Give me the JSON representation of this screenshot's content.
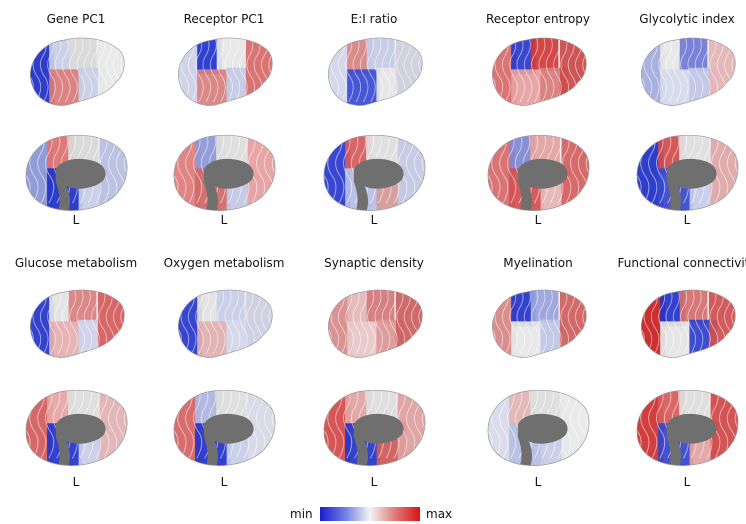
{
  "panels": [
    {
      "title": "Gene PC1",
      "hemisphere": "L",
      "lateral_colors": [
        "#1f2fc9",
        "#c9cfe6",
        "#d9d9d9",
        "#d97b7b",
        "#c9cfe6",
        "#e9e9e9"
      ],
      "medial_colors": [
        "#8a96d6",
        "#e07070",
        "#d9d9d9",
        "#2030c8",
        "#c8cfe8",
        "#b8c0e2"
      ]
    },
    {
      "title": "Receptor PC1",
      "hemisphere": "L",
      "lateral_colors": [
        "#cfd3e8",
        "#2233d0",
        "#e8e8e8",
        "#d98080",
        "#c5cbe6",
        "#d96a6a"
      ],
      "medial_colors": [
        "#e07c7c",
        "#8d98d8",
        "#dedede",
        "#d06868",
        "#c3c9e6",
        "#e8a0a0"
      ]
    },
    {
      "title": "E:I ratio",
      "hemisphere": "L",
      "lateral_colors": [
        "#d3d7ea",
        "#d98484",
        "#c6cce8",
        "#3b4bd4",
        "#e7e7e7",
        "#cfcfe0"
      ],
      "medial_colors": [
        "#2a38d0",
        "#d85c5c",
        "#e0e0e0",
        "#b8c0e6",
        "#d69a9a",
        "#c4cae6"
      ]
    },
    {
      "title": "Receptor entropy",
      "hemisphere": "L",
      "lateral_colors": [
        "#d96b6b",
        "#2a38cc",
        "#d23a3a",
        "#e8a0a0",
        "#d97c7c",
        "#cc4a4a"
      ],
      "medial_colors": [
        "#d96a6a",
        "#8088d4",
        "#e3a3a3",
        "#d45050",
        "#e6b6b6",
        "#d66060"
      ]
    },
    {
      "title": "Glycolytic index",
      "hemisphere": "L",
      "lateral_colors": [
        "#a3acdf",
        "#e8e8e8",
        "#6f7bd6",
        "#d6dbee",
        "#c0c7e6",
        "#e5b5b5"
      ],
      "medial_colors": [
        "#2030c8",
        "#d24c4c",
        "#e0e0e0",
        "#3a48d0",
        "#c8ceea",
        "#dfa8a8"
      ]
    },
    {
      "title": "Glucose metabolism",
      "hemisphere": "L",
      "lateral_colors": [
        "#2535cc",
        "#e4e4e4",
        "#d98080",
        "#e6b0b0",
        "#cfd3ea",
        "#d65c5c"
      ],
      "medial_colors": [
        "#d45c5c",
        "#e8a6a6",
        "#dedede",
        "#2434cc",
        "#c9cfe9",
        "#e3b3b3"
      ]
    },
    {
      "title": "Oxygen metabolism",
      "hemisphere": "L",
      "lateral_colors": [
        "#2838ce",
        "#e4e4e4",
        "#c8cee9",
        "#e2b0b0",
        "#d4d8ec",
        "#cfcfe2"
      ],
      "medial_colors": [
        "#d66464",
        "#aeb6e2",
        "#dedede",
        "#2232cc",
        "#c8cee8",
        "#d9d9e8"
      ]
    },
    {
      "title": "Synaptic density",
      "hemisphere": "L",
      "lateral_colors": [
        "#d98c8c",
        "#e5b9b9",
        "#d57a7a",
        "#e9c9c9",
        "#dd9898",
        "#cc6060"
      ],
      "medial_colors": [
        "#d54a4a",
        "#e2a4a4",
        "#dedede",
        "#2535cc",
        "#cf5a5a",
        "#e0a0a0"
      ]
    },
    {
      "title": "Myelination",
      "hemisphere": "L",
      "lateral_colors": [
        "#d98888",
        "#2535cc",
        "#9aa4de",
        "#e8e8e8",
        "#c0c7e8",
        "#d06060"
      ],
      "medial_colors": [
        "#d9dbec",
        "#e4b4b4",
        "#dedede",
        "#b6bee4",
        "#c8cee9",
        "#e9e9e9"
      ]
    },
    {
      "title": "Functional connectivity",
      "hemisphere": "L",
      "lateral_colors": [
        "#cc2020",
        "#2434cc",
        "#d67070",
        "#e6e6e6",
        "#3040cc",
        "#d05050"
      ],
      "medial_colors": [
        "#cf3030",
        "#d85c5c",
        "#dedede",
        "#3545cc",
        "#e4a4a4",
        "#d04848"
      ]
    }
  ],
  "colorbar": {
    "min_label": "min",
    "max_label": "max",
    "min_color": "#1c1ccf",
    "max_color": "#d81414"
  }
}
